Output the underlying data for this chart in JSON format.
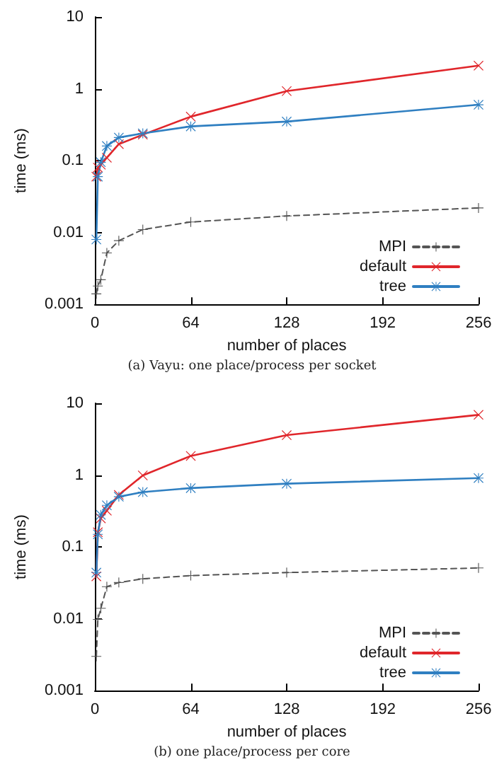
{
  "chart_data": [
    {
      "type": "line",
      "xlabel": "number of places",
      "ylabel": "time (ms)",
      "annotations": [
        "(a) Vayu: one place/process per socket"
      ],
      "x": [
        1,
        2,
        4,
        8,
        16,
        32,
        64,
        128,
        256
      ],
      "xlim": [
        0,
        256
      ],
      "xticks": [
        0,
        64,
        128,
        192,
        256
      ],
      "ylim": [
        0.001,
        10
      ],
      "yticks": [
        0.001,
        0.01,
        0.1,
        1,
        10
      ],
      "log": "y",
      "grid": false,
      "legend": "bottom right",
      "series": [
        {
          "name": "MPI",
          "color": "#555555",
          "marker": "plus",
          "line_style": "dashed",
          "values": [
            0.0014,
            0.0018,
            0.0022,
            0.0052,
            0.0077,
            0.011,
            0.014,
            0.017,
            0.022
          ]
        },
        {
          "name": "default",
          "color": "#e0262b",
          "marker": "cross",
          "line_style": "solid",
          "values": [
            0.06,
            0.08,
            0.088,
            0.11,
            0.17,
            0.23,
            0.41,
            0.93,
            2.1
          ]
        },
        {
          "name": "tree",
          "color": "#2f7fc1",
          "marker": "star",
          "line_style": "solid",
          "values": [
            0.008,
            0.06,
            0.095,
            0.16,
            0.21,
            0.24,
            0.3,
            0.35,
            0.6
          ]
        }
      ]
    },
    {
      "type": "line",
      "xlabel": "number of places",
      "ylabel": "time (ms)",
      "annotations": [
        "(b) one place/process per core"
      ],
      "x": [
        1,
        2,
        4,
        8,
        16,
        32,
        64,
        128,
        256
      ],
      "xlim": [
        0,
        256
      ],
      "xticks": [
        0,
        64,
        128,
        192,
        256
      ],
      "ylim": [
        0.001,
        10
      ],
      "yticks": [
        0.001,
        0.01,
        0.1,
        1,
        10
      ],
      "log": "y",
      "grid": false,
      "legend": "bottom right",
      "series": [
        {
          "name": "MPI",
          "color": "#555555",
          "marker": "plus",
          "line_style": "dashed",
          "values": [
            0.003,
            0.0098,
            0.014,
            0.028,
            0.032,
            0.036,
            0.04,
            0.044,
            0.051
          ]
        },
        {
          "name": "default",
          "color": "#e0262b",
          "marker": "cross",
          "line_style": "solid",
          "values": [
            0.039,
            0.16,
            0.25,
            0.32,
            0.53,
            0.99,
            1.85,
            3.6,
            6.9
          ]
        },
        {
          "name": "tree",
          "color": "#2f7fc1",
          "marker": "star",
          "line_style": "solid",
          "values": [
            0.044,
            0.15,
            0.28,
            0.38,
            0.5,
            0.58,
            0.66,
            0.76,
            0.91
          ]
        }
      ]
    }
  ]
}
